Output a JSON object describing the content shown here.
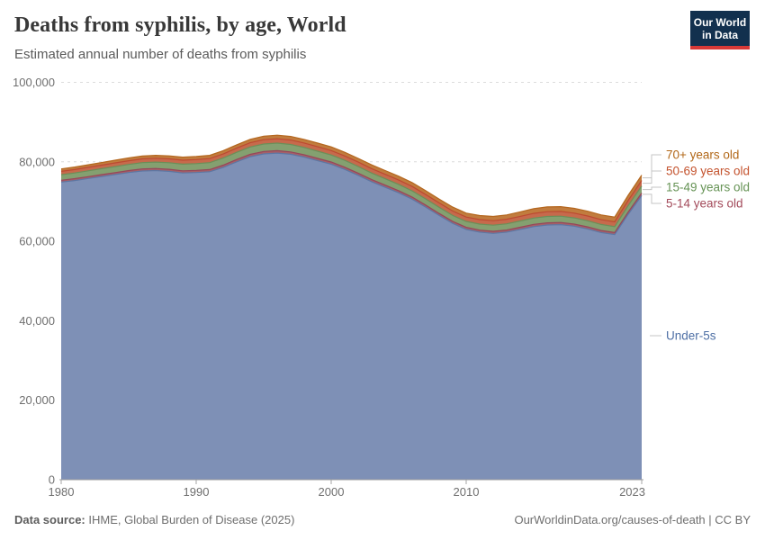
{
  "header": {
    "title": "Deaths from syphilis, by age, World",
    "subtitle": "Estimated annual number of deaths from syphilis",
    "logo": {
      "line1": "Our World",
      "line2": "in Data",
      "bg": "#12304e",
      "accent": "#d73937"
    }
  },
  "footer": {
    "source_label": "Data source:",
    "source_text": " IHME, Global Burden of Disease (2025)",
    "right_text": "OurWorldinData.org/causes-of-death | CC BY"
  },
  "chart_data": {
    "type": "area",
    "stacked": true,
    "title": "Deaths from syphilis, by age, World",
    "subtitle": "Estimated annual number of deaths from syphilis",
    "xlabel": "",
    "ylabel": "",
    "grid": "dashed horizontal",
    "legend_position": "right-edge entity labels with gray connector brackets",
    "ylim": [
      0,
      100000
    ],
    "xlim": [
      1980,
      2023
    ],
    "yticks": [
      {
        "v": 0,
        "label": "0"
      },
      {
        "v": 20000,
        "label": "20,000"
      },
      {
        "v": 40000,
        "label": "40,000"
      },
      {
        "v": 60000,
        "label": "60,000"
      },
      {
        "v": 80000,
        "label": "80,000"
      },
      {
        "v": 100000,
        "label": "100,000"
      }
    ],
    "xticks": [
      {
        "v": 1980,
        "label": "1980"
      },
      {
        "v": 1990,
        "label": "1990"
      },
      {
        "v": 2000,
        "label": "2000"
      },
      {
        "v": 2010,
        "label": "2010"
      },
      {
        "v": 2023,
        "label": "2023"
      }
    ],
    "x": [
      1980,
      1981,
      1982,
      1983,
      1984,
      1985,
      1986,
      1987,
      1988,
      1989,
      1990,
      1991,
      1992,
      1993,
      1994,
      1995,
      1996,
      1997,
      1998,
      1999,
      2000,
      2001,
      2002,
      2003,
      2004,
      2005,
      2006,
      2007,
      2008,
      2009,
      2010,
      2011,
      2012,
      2013,
      2014,
      2015,
      2016,
      2017,
      2018,
      2019,
      2020,
      2021,
      2022,
      2023
    ],
    "series": [
      {
        "name": "Under-5s",
        "fill": "#7E90B6",
        "line": "#5D77A3",
        "label_color": "#4E6FA5",
        "values": [
          74900,
          75300,
          75800,
          76300,
          76800,
          77300,
          77700,
          77800,
          77600,
          77200,
          77300,
          77500,
          78600,
          80000,
          81300,
          82000,
          82200,
          81900,
          81200,
          80300,
          79400,
          78100,
          76600,
          75000,
          73600,
          72200,
          70600,
          68600,
          66500,
          64500,
          63000,
          62300,
          62000,
          62300,
          63000,
          63700,
          64100,
          64200,
          63800,
          63100,
          62200,
          61700,
          66800,
          71500
        ]
      },
      {
        "name": "5-14 years old",
        "fill": "#A66068",
        "line": "#96465A",
        "label_color": "#A34B5B",
        "values": [
          450,
          460,
          470,
          480,
          490,
          500,
          510,
          520,
          530,
          540,
          550,
          560,
          570,
          580,
          590,
          600,
          600,
          590,
          580,
          570,
          560,
          550,
          540,
          530,
          530,
          520,
          520,
          510,
          510,
          500,
          500,
          510,
          520,
          530,
          540,
          550,
          550,
          540,
          530,
          520,
          510,
          500,
          570,
          650
        ]
      },
      {
        "name": "15-49 years old",
        "fill": "#84A070",
        "line": "#6B8F58",
        "label_color": "#669355",
        "values": [
          1400,
          1430,
          1460,
          1490,
          1520,
          1550,
          1580,
          1610,
          1640,
          1670,
          1700,
          1730,
          1770,
          1810,
          1850,
          1880,
          1900,
          1880,
          1850,
          1810,
          1770,
          1730,
          1690,
          1650,
          1620,
          1590,
          1570,
          1550,
          1530,
          1510,
          1500,
          1520,
          1540,
          1560,
          1580,
          1590,
          1600,
          1590,
          1570,
          1550,
          1520,
          1500,
          1620,
          1750
        ]
      },
      {
        "name": "50-69 years old",
        "fill": "#C66A4C",
        "line": "#BC4A31",
        "label_color": "#C4532E",
        "values": [
          850,
          870,
          880,
          900,
          920,
          930,
          950,
          970,
          980,
          1000,
          1010,
          1030,
          1040,
          1060,
          1070,
          1090,
          1100,
          1100,
          1100,
          1100,
          1100,
          1100,
          1100,
          1100,
          1100,
          1100,
          1100,
          1100,
          1100,
          1100,
          1100,
          1120,
          1130,
          1150,
          1160,
          1180,
          1200,
          1200,
          1200,
          1200,
          1200,
          1200,
          1300,
          1400
        ]
      },
      {
        "name": "70+ years old",
        "fill": "#C17C3E",
        "line": "#B4671F",
        "label_color": "#B26819",
        "values": [
          600,
          620,
          640,
          660,
          680,
          690,
          710,
          730,
          750,
          770,
          790,
          810,
          820,
          840,
          860,
          880,
          900,
          910,
          910,
          920,
          930,
          930,
          940,
          950,
          950,
          960,
          970,
          970,
          980,
          990,
          1000,
          1030,
          1070,
          1100,
          1130,
          1170,
          1200,
          1200,
          1200,
          1200,
          1200,
          1200,
          1280,
          1350
        ]
      }
    ]
  }
}
